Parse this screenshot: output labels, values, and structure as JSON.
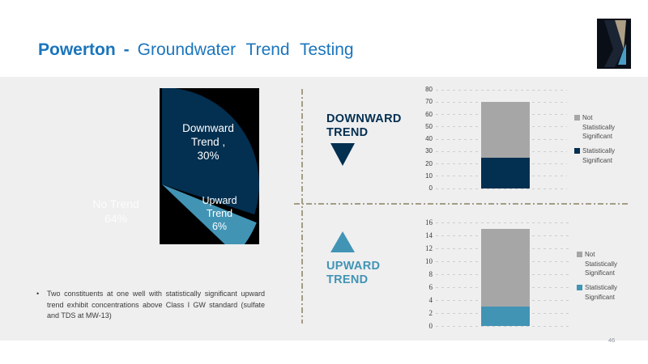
{
  "title": {
    "site": "Powerton",
    "separator": "-",
    "rest": "Groundwater Trend Testing"
  },
  "page_number": "46",
  "colors": {
    "accent_title_blue": "#1b75bc",
    "dark_navy": "#032f50",
    "steel_blue": "#4294b5",
    "neutral_gray_bar": "#a6a6a6",
    "tan_divider": "#a49c85",
    "pie_background": "#000000",
    "panel_background": "#efeff0"
  },
  "sections": {
    "downward": {
      "lines": [
        "DOWNWARD",
        "TREND"
      ],
      "icon": "down-triangle"
    },
    "upward": {
      "lines": [
        "UPWARD",
        "TREND"
      ],
      "icon": "up-triangle"
    }
  },
  "pie": {
    "labels": {
      "downward": [
        "Downward",
        "Trend ,",
        "30%"
      ],
      "upward": [
        "Upward",
        "Trend",
        "6%"
      ],
      "no_trend": [
        "No Trend",
        "64%"
      ]
    }
  },
  "chart_data": [
    {
      "id": "trend-pie",
      "type": "pie",
      "title": "",
      "slices": [
        {
          "label": "Downward Trend",
          "pct": 30,
          "color": "#032f50",
          "hidden": false
        },
        {
          "label": "Upward Trend",
          "pct": 6,
          "color": "#4294b5",
          "hidden": false
        },
        {
          "label": "No Trend",
          "pct": 64,
          "color": "#000000",
          "hidden": true
        }
      ],
      "note": "No Trend slice is rendered in the black background color; labels shown in white"
    },
    {
      "id": "downward-trend-bar",
      "type": "bar",
      "stacked": true,
      "categories": [
        "Downward Trend"
      ],
      "series": [
        {
          "name": "Statistically Significant",
          "values": [
            25
          ],
          "color": "#032f50"
        },
        {
          "name": "Not Statistically Significant",
          "values": [
            45
          ],
          "color": "#a6a6a6"
        }
      ],
      "stack_total": 70,
      "ylim": [
        0,
        80
      ],
      "yticks": [
        0,
        10,
        20,
        30,
        40,
        50,
        60,
        70,
        80
      ],
      "grid": true,
      "legend_position": "right",
      "tick_font": "sans"
    },
    {
      "id": "upward-trend-bar",
      "type": "bar",
      "stacked": true,
      "categories": [
        "Upward Trend"
      ],
      "series": [
        {
          "name": "Statistically Significant",
          "values": [
            3
          ],
          "color": "#4294b5"
        },
        {
          "name": "Not Statistically Significant",
          "values": [
            12
          ],
          "color": "#a6a6a6"
        }
      ],
      "stack_total": 15,
      "ylim": [
        0,
        16
      ],
      "yticks": [
        0,
        2,
        4,
        6,
        8,
        10,
        12,
        14,
        16
      ],
      "grid": true,
      "legend_position": "right",
      "tick_font": "serif"
    }
  ],
  "legend": {
    "items": [
      {
        "series": "Not Statistically Significant",
        "lines": [
          "Not",
          "Statistically",
          "Significant"
        ]
      },
      {
        "series": "Statistically Significant",
        "lines": [
          "Statistically",
          "Significant"
        ]
      }
    ]
  },
  "note": {
    "bullet": "•",
    "text": "Two constituents at one well with statistically significant upward trend exhibit concentrations above Class I GW standard (sulfate and TDS at MW-13)"
  }
}
